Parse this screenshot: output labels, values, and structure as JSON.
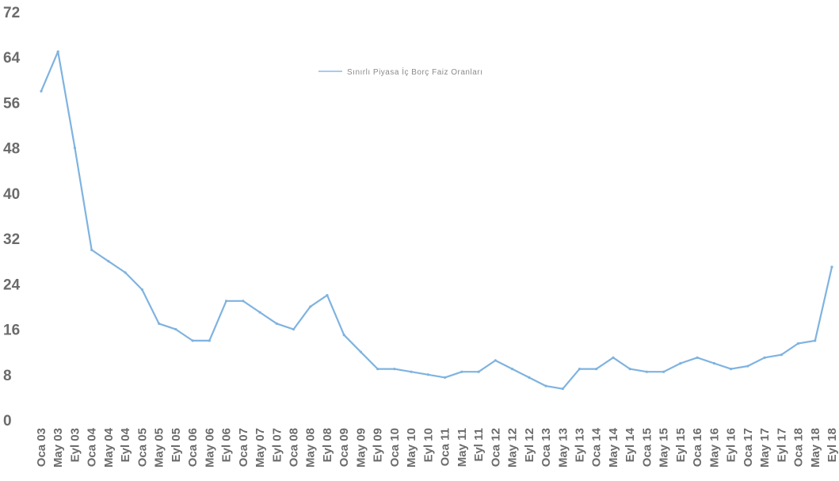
{
  "chart_data": {
    "type": "line",
    "title": "",
    "xlabel": "",
    "ylabel": "",
    "ylim": [
      0,
      72
    ],
    "yticks": [
      "0",
      "8",
      "16",
      "24",
      "32",
      "40",
      "48",
      "56",
      "64",
      "72"
    ],
    "grid": false,
    "legend_position": "top-center",
    "series_color": "#7fb3e0",
    "categories": [
      "Oca 03",
      "May 03",
      "Eyl 03",
      "Oca 04",
      "May 04",
      "Eyl 04",
      "Oca 05",
      "May 05",
      "Eyl 05",
      "Oca 06",
      "May 06",
      "Eyl 06",
      "Oca 07",
      "May 07",
      "Eyl 07",
      "Oca 08",
      "May 08",
      "Eyl 08",
      "Oca 09",
      "May 09",
      "Eyl 09",
      "Oca 10",
      "May 10",
      "Eyl 10",
      "Oca 11",
      "May 11",
      "Eyl 11",
      "Oca 12",
      "May 12",
      "Eyl 12",
      "Oca 13",
      "May 13",
      "Eyl 13",
      "Oca 14",
      "May 14",
      "Eyl 14",
      "Oca 15",
      "May 15",
      "Eyl 15",
      "Oca 16",
      "May 16",
      "Eyl 16",
      "Oca 17",
      "May 17",
      "Eyl 17",
      "Oca 18",
      "May 18",
      "Eyl 18"
    ],
    "series": [
      {
        "name": "Sınırlı Piyasa İç Borç Faiz Oranları",
        "values": [
          58,
          65,
          48,
          30,
          28,
          26,
          23,
          17,
          16,
          14,
          14,
          21,
          21,
          19,
          17,
          16,
          20,
          22,
          15,
          12,
          9,
          9,
          8.5,
          8,
          7.5,
          8.5,
          8.5,
          10.5,
          9,
          7.5,
          6,
          5.5,
          9,
          9,
          11,
          9,
          8.5,
          8.5,
          10,
          11,
          10,
          9,
          9.5,
          11,
          11.5,
          13.5,
          14,
          27
        ]
      }
    ]
  }
}
